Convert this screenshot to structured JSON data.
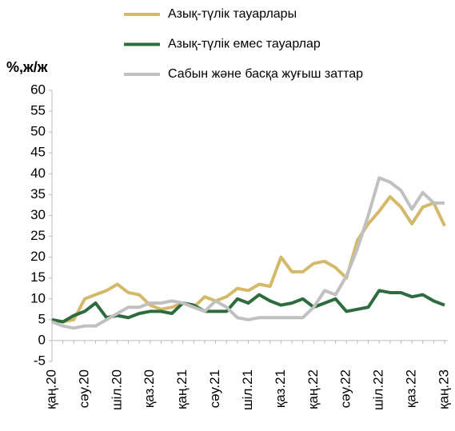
{
  "chart_data": {
    "type": "line",
    "y_label": "%,ж/ж",
    "categories": [
      "қаң.20",
      null,
      null,
      "сәу.20",
      null,
      null,
      "шіл.20",
      null,
      null,
      "қаз.20",
      null,
      null,
      "қаң.21",
      null,
      null,
      "сәу.21",
      null,
      null,
      "шіл.21",
      null,
      null,
      "қаз.21",
      null,
      null,
      "қаң.22",
      null,
      null,
      "сәу.22",
      null,
      null,
      "шіл.22",
      null,
      null,
      "қаз.22",
      null,
      null,
      "қаң.23"
    ],
    "series": [
      {
        "name": "Азық-түлік тауарлары",
        "color": "#d4b96a",
        "values": [
          5,
          4.5,
          5,
          10,
          11,
          12,
          13.5,
          11.5,
          11,
          8.5,
          7.5,
          8,
          9,
          8,
          10.5,
          9.5,
          10.5,
          12.5,
          12,
          13.5,
          13,
          20,
          16.5,
          16.5,
          18.5,
          19,
          17.5,
          15,
          24,
          28,
          31,
          34.5,
          32,
          28,
          32,
          33,
          27.5
        ]
      },
      {
        "name": "Азық-түлік емес тауарлар",
        "color": "#2e6b3e",
        "values": [
          5,
          4.5,
          6,
          7,
          9,
          5.5,
          6,
          5.5,
          6.5,
          7,
          7,
          6.5,
          9,
          8.5,
          7,
          7,
          7,
          10,
          9,
          11,
          9.5,
          8.5,
          9,
          10,
          8,
          9,
          10,
          7,
          7.5,
          8,
          12,
          11.5,
          11.5,
          10.5,
          11,
          9.5,
          8.5
        ]
      },
      {
        "name": "Сабын және басқа жуғыш заттар",
        "color": "#c0c0c0",
        "values": [
          4.5,
          3.5,
          3,
          3.5,
          3.5,
          5,
          6.5,
          8,
          8,
          9,
          9,
          9.5,
          9,
          8,
          7,
          9.5,
          8,
          5.5,
          5,
          5.5,
          5.5,
          5.5,
          5.5,
          5.5,
          8,
          12,
          11,
          15.5,
          22,
          30,
          39,
          38,
          36,
          31.5,
          35.5,
          33,
          33
        ]
      }
    ],
    "ylim": [
      -5,
      60
    ],
    "yticks": [
      -5,
      0,
      5,
      10,
      15,
      20,
      25,
      30,
      35,
      40,
      45,
      50,
      55,
      60
    ]
  }
}
